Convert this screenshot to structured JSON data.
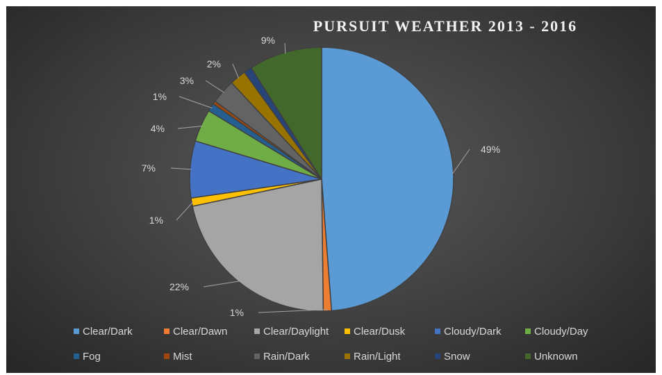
{
  "chart_data": {
    "type": "pie",
    "title": "PURSUIT WEATHER 2013 - 2016",
    "categories": [
      "Clear/Dark",
      "Clear/Dawn",
      "Clear/Daylight",
      "Clear/Dusk",
      "Cloudy/Dark",
      "Cloudy/Day",
      "Fog",
      "Mist",
      "Rain/Dark",
      "Rain/Light",
      "Snow",
      "Unknown"
    ],
    "values": [
      49,
      1,
      22,
      1,
      7,
      4,
      1,
      0.4,
      3,
      2,
      1,
      9
    ],
    "data_labels": [
      "49%",
      "1%",
      "22%",
      "1%",
      "7%",
      "4%",
      "1%",
      "",
      "3%",
      "2%",
      "",
      "9%"
    ],
    "colors": [
      "#5b9bd5",
      "#ed7d31",
      "#a5a5a5",
      "#ffc000",
      "#4472c4",
      "#70ad47",
      "#255e91",
      "#9e480e",
      "#636363",
      "#997300",
      "#264478",
      "#43682b"
    ],
    "legend_position": "bottom",
    "start_angle_deg": 0,
    "direction": "clockwise"
  }
}
